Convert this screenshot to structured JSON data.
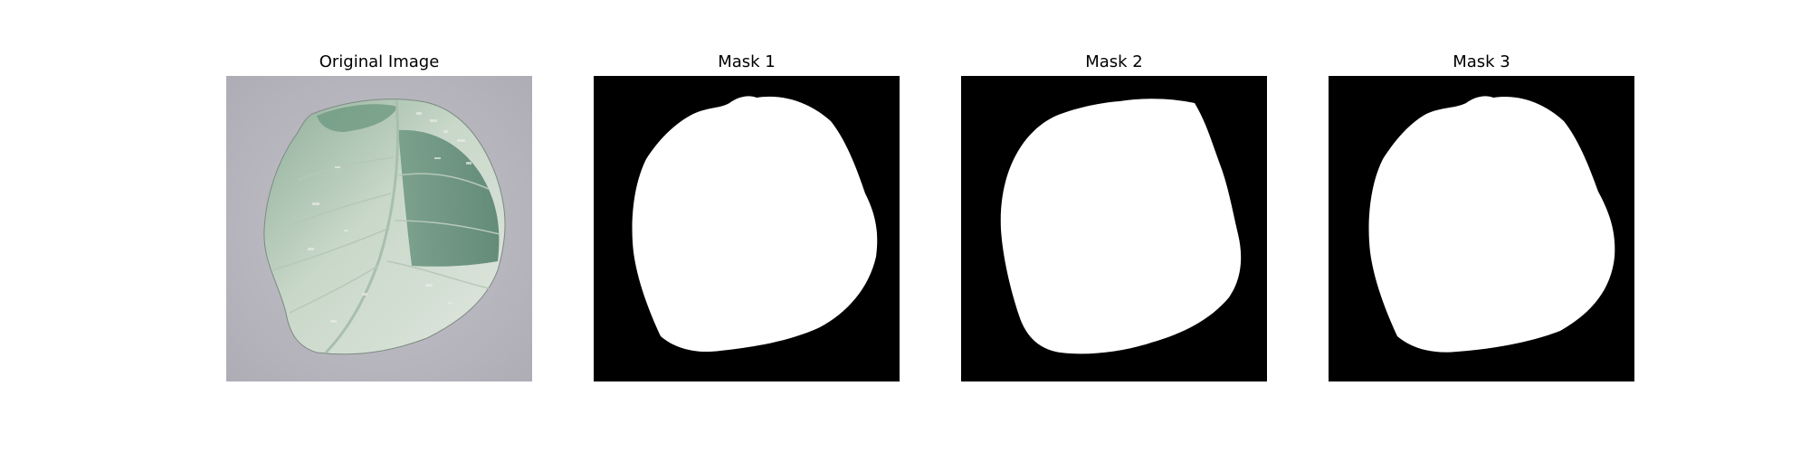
{
  "figure": {
    "panels": [
      {
        "title": "Original Image"
      },
      {
        "title": "Mask 1"
      },
      {
        "title": "Mask 2"
      },
      {
        "title": "Mask 3"
      }
    ]
  },
  "colors": {
    "background": "#ffffff",
    "mask_background": "#000000",
    "mask_foreground": "#ffffff",
    "photo_background": "#b9b8bf",
    "leaf_light": "#cfdccf",
    "leaf_dark": "#5f8a74"
  }
}
